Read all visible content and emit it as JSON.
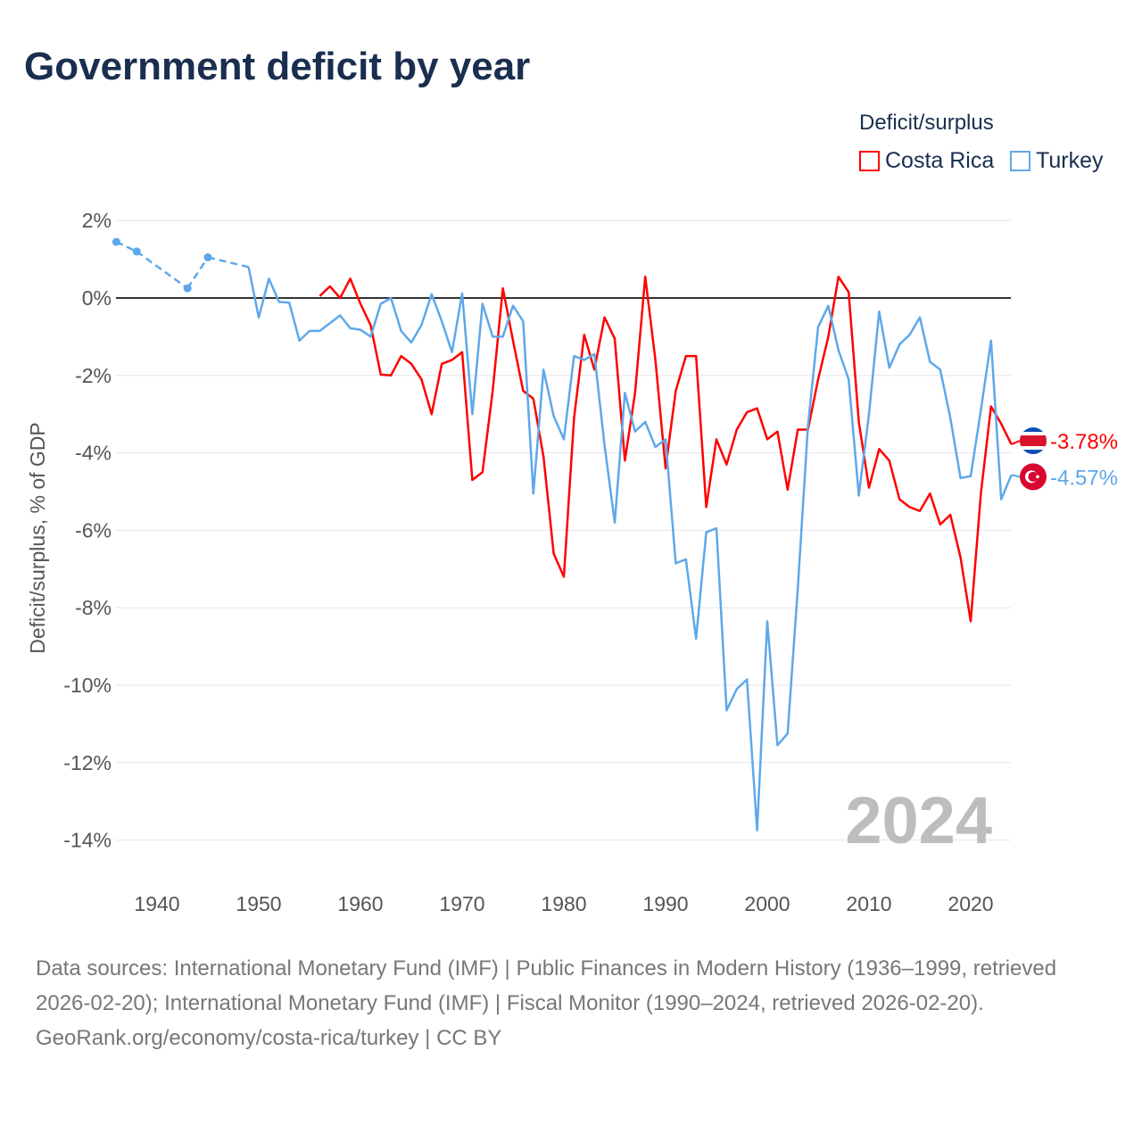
{
  "chart_data": {
    "type": "line",
    "title": "Government deficit by year",
    "ylabel": "Deficit/surplus, % of GDP",
    "xlabel": "",
    "ylim": [
      -15,
      2.5
    ],
    "xlim": [
      1936,
      2024
    ],
    "yticks": [
      2,
      0,
      -2,
      -4,
      -6,
      -8,
      -10,
      -12,
      -14
    ],
    "ytick_labels": [
      "2%",
      "0%",
      "-2%",
      "-4%",
      "-6%",
      "-8%",
      "-10%",
      "-12%",
      "-14%"
    ],
    "xticks": [
      1940,
      1950,
      1960,
      1970,
      1980,
      1990,
      2000,
      2010,
      2020
    ],
    "xtick_labels": [
      "1940",
      "1950",
      "1960",
      "1970",
      "1980",
      "1990",
      "2000",
      "2010",
      "2020"
    ],
    "grid": true,
    "legend_title": "Deficit/surplus",
    "legend_position": "top-right",
    "year_watermark": "2024",
    "series": [
      {
        "name": "Costa Rica",
        "color": "#ff0000",
        "end_label": "-3.78%",
        "x": [
          1956,
          1957,
          1958,
          1959,
          1960,
          1961,
          1962,
          1963,
          1964,
          1965,
          1966,
          1967,
          1968,
          1969,
          1970,
          1971,
          1972,
          1973,
          1974,
          1975,
          1976,
          1977,
          1978,
          1979,
          1980,
          1981,
          1982,
          1983,
          1984,
          1985,
          1986,
          1987,
          1988,
          1989,
          1990,
          1991,
          1992,
          1993,
          1994,
          1995,
          1996,
          1997,
          1998,
          1999,
          2000,
          2001,
          2002,
          2003,
          2004,
          2005,
          2006,
          2007,
          2008,
          2009,
          2010,
          2011,
          2012,
          2013,
          2014,
          2015,
          2016,
          2017,
          2018,
          2019,
          2020,
          2021,
          2022,
          2023,
          2024
        ],
        "values": [
          0.05,
          0.3,
          0.0,
          0.5,
          -0.15,
          -0.7,
          -1.98,
          -2.0,
          -1.5,
          -1.7,
          -2.1,
          -3.0,
          -1.7,
          -1.6,
          -1.4,
          -4.7,
          -4.5,
          -2.4,
          0.25,
          -1.1,
          -2.4,
          -2.6,
          -4.1,
          -6.6,
          -7.2,
          -3.1,
          -0.95,
          -1.85,
          -0.5,
          -1.05,
          -4.2,
          -2.45,
          0.55,
          -1.6,
          -4.4,
          -2.4,
          -1.5,
          -1.5,
          -5.4,
          -3.65,
          -4.3,
          -3.4,
          -2.95,
          -2.85,
          -3.65,
          -3.45,
          -4.95,
          -3.4,
          -3.4,
          -2.1,
          -1.0,
          0.55,
          0.15,
          -3.2,
          -4.9,
          -3.9,
          -4.2,
          -5.2,
          -5.4,
          -5.5,
          -5.05,
          -5.85,
          -5.6,
          -6.7,
          -8.35,
          -5.05,
          -2.8,
          -3.25,
          -3.78
        ]
      },
      {
        "name": "Turkey",
        "color": "#5ea8ea",
        "end_label": "-4.57%",
        "x": [
          1936,
          1938,
          1943,
          1945,
          1949,
          1950,
          1951,
          1952,
          1953,
          1954,
          1955,
          1956,
          1957,
          1958,
          1959,
          1960,
          1961,
          1962,
          1963,
          1964,
          1965,
          1966,
          1967,
          1968,
          1969,
          1970,
          1971,
          1972,
          1973,
          1974,
          1975,
          1976,
          1977,
          1978,
          1979,
          1980,
          1981,
          1982,
          1983,
          1984,
          1985,
          1986,
          1987,
          1988,
          1989,
          1990,
          1991,
          1992,
          1993,
          1994,
          1995,
          1996,
          1997,
          1998,
          1999,
          2000,
          2001,
          2002,
          2003,
          2004,
          2005,
          2006,
          2007,
          2008,
          2009,
          2010,
          2011,
          2012,
          2013,
          2014,
          2015,
          2016,
          2017,
          2018,
          2019,
          2020,
          2021,
          2022,
          2023,
          2024
        ],
        "values": [
          1.45,
          1.2,
          0.25,
          1.05,
          0.8,
          -0.5,
          0.5,
          -0.1,
          -0.12,
          -1.1,
          -0.85,
          -0.85,
          -0.65,
          -0.45,
          -0.78,
          -0.82,
          -1.0,
          -0.15,
          0.0,
          -0.85,
          -1.15,
          -0.7,
          0.1,
          -0.6,
          -1.4,
          0.12,
          -3.0,
          -0.15,
          -1.0,
          -1.0,
          -0.2,
          -0.6,
          -5.05,
          -1.85,
          -3.05,
          -3.65,
          -1.5,
          -1.6,
          -1.45,
          -3.8,
          -5.8,
          -2.45,
          -3.45,
          -3.2,
          -3.85,
          -3.65,
          -6.85,
          -6.75,
          -8.8,
          -6.05,
          -5.95,
          -10.65,
          -10.1,
          -9.85,
          -13.75,
          -8.35,
          -11.55,
          -11.25,
          -7.5,
          -3.3,
          -0.75,
          -0.2,
          -1.35,
          -2.1,
          -5.1,
          -3.0,
          -0.35,
          -1.8,
          -1.2,
          -0.95,
          -0.5,
          -1.65,
          -1.85,
          -3.1,
          -4.65,
          -4.6,
          -2.9,
          -1.1,
          -5.2,
          -4.57
        ]
      }
    ]
  },
  "footer": {
    "sources": "Data sources: International Monetary Fund (IMF) | Public Finances in Modern History (1936–1999, retrieved 2026-02-20); International Monetary Fund (IMF) | Fiscal Monitor (1990–2024, retrieved 2026-02-20).",
    "credit": "GeoRank.org/economy/costa-rica/turkey | CC BY"
  }
}
